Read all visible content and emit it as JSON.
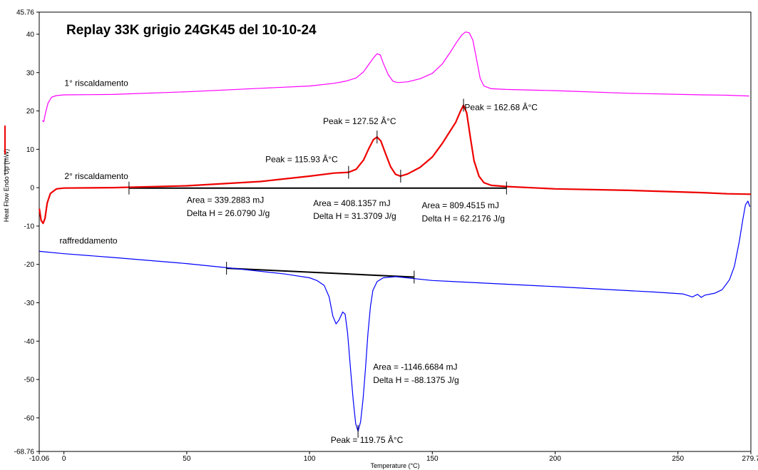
{
  "chart_data": {
    "type": "line",
    "title": "Replay 33K grigio 24GK45 del 10-10-24",
    "xlabel": "Temperature (°C)",
    "ylabel": "Heat Flow Endo Up (mW)",
    "xlim": [
      -10.06,
      279.7
    ],
    "ylim": [
      -68.76,
      45.76
    ],
    "x_tick_labels": [
      "-10.06",
      "0",
      "50",
      "100",
      "150",
      "200",
      "250",
      "279.7"
    ],
    "x_ticks": [
      -10.06,
      0,
      50,
      100,
      150,
      200,
      250,
      279.7
    ],
    "y_tick_labels": [
      "45.76",
      "40",
      "30",
      "20",
      "10",
      "0",
      "-10",
      "-20",
      "-30",
      "-40",
      "-50",
      "-60",
      "-68.76"
    ],
    "y_ticks": [
      45.76,
      40,
      30,
      20,
      10,
      0,
      -10,
      -20,
      -30,
      -40,
      -50,
      -60,
      -68.76
    ],
    "series": [
      {
        "name": "1° riscaldamento",
        "color": "#ff00ff",
        "points": [
          [
            -8.8,
            17.5
          ],
          [
            -8.2,
            17.2
          ],
          [
            -7.5,
            19.5
          ],
          [
            -6.5,
            22.0
          ],
          [
            -5,
            23.6
          ],
          [
            -3,
            24.0
          ],
          [
            0,
            24.2
          ],
          [
            20,
            24.3
          ],
          [
            50,
            25.0
          ],
          [
            80,
            25.9
          ],
          [
            100,
            26.5
          ],
          [
            110,
            27.2
          ],
          [
            115,
            27.8
          ],
          [
            119,
            28.6
          ],
          [
            122,
            30.2
          ],
          [
            124,
            32.0
          ],
          [
            126,
            33.8
          ],
          [
            127.5,
            34.9
          ],
          [
            128.8,
            34.6
          ],
          [
            130,
            32.5
          ],
          [
            132,
            29.5
          ],
          [
            134,
            27.7
          ],
          [
            136,
            27.4
          ],
          [
            140,
            27.6
          ],
          [
            145,
            28.4
          ],
          [
            150,
            29.8
          ],
          [
            154,
            32.2
          ],
          [
            157,
            35.0
          ],
          [
            160,
            38.0
          ],
          [
            162,
            39.8
          ],
          [
            163.5,
            40.6
          ],
          [
            165,
            40.4
          ],
          [
            166.5,
            38.5
          ],
          [
            168,
            33.5
          ],
          [
            169.5,
            28.5
          ],
          [
            171,
            26.5
          ],
          [
            174,
            25.8
          ],
          [
            180,
            25.6
          ],
          [
            200,
            25.3
          ],
          [
            230,
            24.6
          ],
          [
            260,
            24.2
          ],
          [
            270,
            24.1
          ],
          [
            279,
            23.9
          ]
        ]
      },
      {
        "name": "2° riscaldamento",
        "color": "#ee0000",
        "points": [
          [
            -10,
            -5.5
          ],
          [
            -9.3,
            -8.5
          ],
          [
            -8.5,
            -9.3
          ],
          [
            -7.7,
            -8.0
          ],
          [
            -6.8,
            -4.0
          ],
          [
            -5.5,
            -1.5
          ],
          [
            -3,
            -0.3
          ],
          [
            0,
            -0.1
          ],
          [
            20,
            0.0
          ],
          [
            50,
            0.5
          ],
          [
            80,
            1.6
          ],
          [
            100,
            3.0
          ],
          [
            110,
            3.8
          ],
          [
            115.9,
            4.0
          ],
          [
            119,
            4.8
          ],
          [
            122,
            7.2
          ],
          [
            124,
            10.0
          ],
          [
            126,
            12.5
          ],
          [
            127.5,
            13.2
          ],
          [
            129,
            12.2
          ],
          [
            131,
            8.8
          ],
          [
            133,
            5.5
          ],
          [
            135,
            3.5
          ],
          [
            137,
            3.0
          ],
          [
            140,
            3.6
          ],
          [
            145,
            5.3
          ],
          [
            150,
            8.0
          ],
          [
            154,
            11.5
          ],
          [
            157,
            14.5
          ],
          [
            159.5,
            17.0
          ],
          [
            161.5,
            20.0
          ],
          [
            162.7,
            21.5
          ],
          [
            164,
            19.5
          ],
          [
            165.5,
            13.0
          ],
          [
            167,
            7.0
          ],
          [
            169,
            3.0
          ],
          [
            171,
            1.3
          ],
          [
            174,
            0.6
          ],
          [
            180,
            0.3
          ],
          [
            200,
            -0.3
          ],
          [
            230,
            -0.7
          ],
          [
            260,
            -1.3
          ],
          [
            270,
            -1.6
          ],
          [
            279.7,
            -1.7
          ]
        ]
      },
      {
        "name": "raffreddamento",
        "color": "#0000ff",
        "points": [
          [
            -10,
            -16.6
          ],
          [
            0,
            -17.2
          ],
          [
            20,
            -18.2
          ],
          [
            50,
            -19.8
          ],
          [
            70,
            -21.1
          ],
          [
            90,
            -22.5
          ],
          [
            100,
            -23.5
          ],
          [
            103,
            -24.2
          ],
          [
            106,
            -25.5
          ],
          [
            108,
            -28.5
          ],
          [
            109.5,
            -33.5
          ],
          [
            110.8,
            -35.5
          ],
          [
            112,
            -34.5
          ],
          [
            113.5,
            -32.4
          ],
          [
            114.5,
            -33.0
          ],
          [
            115.5,
            -38.0
          ],
          [
            116.8,
            -48.0
          ],
          [
            117.8,
            -55.5
          ],
          [
            118.8,
            -61.5
          ],
          [
            119.75,
            -63.5
          ],
          [
            120.8,
            -61.0
          ],
          [
            121.8,
            -55.0
          ],
          [
            122.8,
            -47.0
          ],
          [
            123.8,
            -38.0
          ],
          [
            124.8,
            -31.0
          ],
          [
            125.8,
            -26.8
          ],
          [
            127.5,
            -24.5
          ],
          [
            130,
            -23.5
          ],
          [
            135,
            -23.2
          ],
          [
            150,
            -24.2
          ],
          [
            200,
            -25.8
          ],
          [
            240,
            -27.2
          ],
          [
            252,
            -27.7
          ],
          [
            256,
            -28.5
          ],
          [
            257,
            -28.1
          ],
          [
            258,
            -27.8
          ],
          [
            259.5,
            -28.6
          ],
          [
            261,
            -28.0
          ],
          [
            265,
            -27.5
          ],
          [
            268,
            -26.6
          ],
          [
            271,
            -24.0
          ],
          [
            273,
            -20.5
          ],
          [
            275,
            -14.0
          ],
          [
            276.5,
            -8.0
          ],
          [
            277.5,
            -4.5
          ],
          [
            278.5,
            -3.5
          ],
          [
            279.3,
            -5.0
          ]
        ]
      }
    ],
    "baselines": [
      {
        "color": "#000000",
        "points": [
          [
            26.5,
            -0.1
          ],
          [
            180.2,
            -0.1
          ]
        ]
      },
      {
        "color": "#000000",
        "points": [
          [
            66.2,
            -21.0
          ],
          [
            142.6,
            -23.3
          ]
        ]
      }
    ],
    "tick_marks": [
      [
        26.5,
        -0.1
      ],
      [
        115.9,
        4.0
      ],
      [
        137.1,
        3.0
      ],
      [
        180.2,
        -0.1
      ],
      [
        127.5,
        13.2
      ],
      [
        162.7,
        21.5
      ],
      [
        66.2,
        -21.0
      ],
      [
        142.6,
        -23.3
      ],
      [
        119.75,
        -63.5
      ]
    ],
    "annotations": [
      {
        "text": "1° riscaldamento",
        "x": 0.2,
        "y": 26.5
      },
      {
        "text": "2° riscaldamento",
        "x": 0.2,
        "y": 2.3
      },
      {
        "text": "raffreddamento",
        "x": -1.8,
        "y": -14.6
      },
      {
        "text": "Peak = 115.93 Â°C",
        "x": 82.0,
        "y": 6.6
      },
      {
        "text": "Peak = 127.52 Â°C",
        "x": 105.5,
        "y": 16.6
      },
      {
        "text": "Peak = 162.68 Â°C",
        "x": 163.1,
        "y": 20.2
      },
      {
        "text": "Area = 339.2883 mJ",
        "x": 50.0,
        "y": -4.0
      },
      {
        "text": "Delta H = 26.0790 J/g",
        "x": 50.0,
        "y": -7.4
      },
      {
        "text": "Area = 408.1357 mJ",
        "x": 101.5,
        "y": -4.8
      },
      {
        "text": "Delta H = 31.3709 J/g",
        "x": 101.5,
        "y": -8.2
      },
      {
        "text": "Area = 809.4515 mJ",
        "x": 145.7,
        "y": -5.4
      },
      {
        "text": "Delta H = 62.2176 J/g",
        "x": 145.7,
        "y": -8.8
      },
      {
        "text": "Area = -1146.6684 mJ",
        "x": 125.9,
        "y": -47.5
      },
      {
        "text": "Delta H = -88.1375 J/g",
        "x": 125.9,
        "y": -50.9
      },
      {
        "text": "Peak = 119.75 Â°C",
        "x": 108.6,
        "y": -66.5
      }
    ]
  }
}
